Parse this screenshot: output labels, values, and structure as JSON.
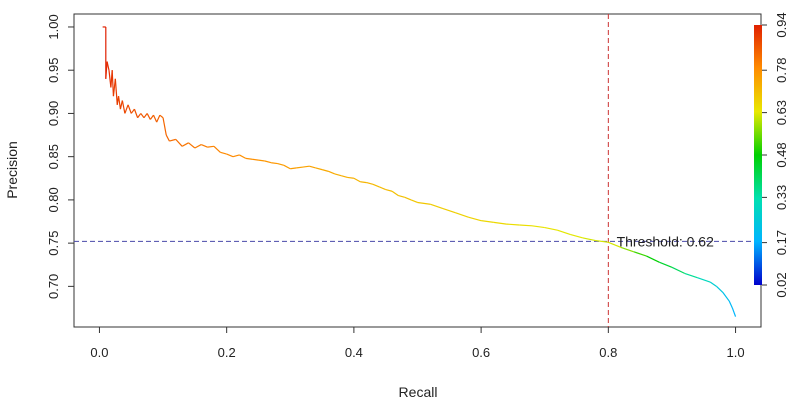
{
  "chart_data": {
    "type": "line",
    "xlabel": "Recall",
    "ylabel": "Precision",
    "xlim": [
      -0.04,
      1.04
    ],
    "ylim": [
      0.653,
      1.015
    ],
    "x_ticks": [
      0.0,
      0.2,
      0.4,
      0.6,
      0.8,
      1.0
    ],
    "x_tick_labels": [
      "0.0",
      "0.2",
      "0.4",
      "0.6",
      "0.8",
      "1.0"
    ],
    "y_ticks": [
      0.7,
      0.75,
      0.8,
      0.85,
      0.9,
      0.95,
      1.0
    ],
    "y_tick_labels": [
      "0.70",
      "0.75",
      "0.80",
      "0.85",
      "0.90",
      "0.95",
      "1.00"
    ],
    "grid": false,
    "series": [
      {
        "x": [
          0.005,
          0.01,
          0.01,
          0.012,
          0.015,
          0.018,
          0.02,
          0.022,
          0.025,
          0.028,
          0.03,
          0.033,
          0.036,
          0.04,
          0.045,
          0.05,
          0.055,
          0.06,
          0.065,
          0.07,
          0.075,
          0.08,
          0.085,
          0.09,
          0.095,
          0.1,
          0.105,
          0.11,
          0.12,
          0.13,
          0.14,
          0.15,
          0.16,
          0.17,
          0.18,
          0.19,
          0.2,
          0.21,
          0.22,
          0.23,
          0.24,
          0.25,
          0.26,
          0.27,
          0.28,
          0.29,
          0.3,
          0.31,
          0.32,
          0.33,
          0.34,
          0.35,
          0.36,
          0.37,
          0.38,
          0.39,
          0.4,
          0.41,
          0.42,
          0.43,
          0.44,
          0.45,
          0.46,
          0.47,
          0.48,
          0.49,
          0.5,
          0.52,
          0.54,
          0.56,
          0.58,
          0.6,
          0.62,
          0.64,
          0.66,
          0.68,
          0.7,
          0.72,
          0.74,
          0.76,
          0.78,
          0.8,
          0.82,
          0.84,
          0.86,
          0.88,
          0.9,
          0.92,
          0.94,
          0.96,
          0.97,
          0.98,
          0.99,
          0.995,
          1.0
        ],
        "y": [
          1.0,
          1.0,
          0.94,
          0.96,
          0.95,
          0.93,
          0.95,
          0.92,
          0.94,
          0.91,
          0.92,
          0.905,
          0.915,
          0.9,
          0.91,
          0.9,
          0.905,
          0.895,
          0.9,
          0.895,
          0.9,
          0.893,
          0.898,
          0.89,
          0.898,
          0.895,
          0.875,
          0.868,
          0.87,
          0.862,
          0.866,
          0.86,
          0.864,
          0.861,
          0.862,
          0.855,
          0.853,
          0.85,
          0.852,
          0.848,
          0.847,
          0.846,
          0.845,
          0.843,
          0.842,
          0.84,
          0.836,
          0.837,
          0.838,
          0.839,
          0.837,
          0.835,
          0.833,
          0.83,
          0.828,
          0.826,
          0.825,
          0.821,
          0.82,
          0.818,
          0.815,
          0.812,
          0.81,
          0.805,
          0.803,
          0.8,
          0.797,
          0.795,
          0.79,
          0.785,
          0.78,
          0.776,
          0.774,
          0.772,
          0.771,
          0.77,
          0.768,
          0.765,
          0.76,
          0.756,
          0.753,
          0.751,
          0.745,
          0.74,
          0.735,
          0.728,
          0.722,
          0.715,
          0.71,
          0.705,
          0.7,
          0.693,
          0.683,
          0.675,
          0.665
        ],
        "color_value": [
          0.94,
          0.94,
          0.93,
          0.92,
          0.92,
          0.91,
          0.91,
          0.9,
          0.9,
          0.9,
          0.89,
          0.89,
          0.89,
          0.88,
          0.88,
          0.87,
          0.87,
          0.87,
          0.86,
          0.86,
          0.86,
          0.85,
          0.85,
          0.85,
          0.84,
          0.84,
          0.84,
          0.83,
          0.83,
          0.82,
          0.82,
          0.81,
          0.81,
          0.8,
          0.8,
          0.79,
          0.79,
          0.79,
          0.78,
          0.78,
          0.78,
          0.77,
          0.77,
          0.77,
          0.76,
          0.76,
          0.76,
          0.75,
          0.75,
          0.75,
          0.74,
          0.74,
          0.74,
          0.73,
          0.73,
          0.73,
          0.72,
          0.72,
          0.72,
          0.71,
          0.71,
          0.71,
          0.7,
          0.7,
          0.7,
          0.69,
          0.69,
          0.68,
          0.68,
          0.67,
          0.67,
          0.66,
          0.66,
          0.65,
          0.65,
          0.64,
          0.64,
          0.63,
          0.63,
          0.62,
          0.62,
          0.62,
          0.57,
          0.52,
          0.48,
          0.44,
          0.4,
          0.35,
          0.3,
          0.26,
          0.24,
          0.21,
          0.19,
          0.18,
          0.17
        ]
      }
    ],
    "reference_lines": [
      {
        "orientation": "vertical",
        "value": 0.8,
        "color": "#cc3333",
        "style": "dashed"
      },
      {
        "orientation": "horizontal",
        "value": 0.752,
        "color": "#4a4aaa",
        "style": "dashed"
      }
    ],
    "annotations": [
      {
        "text": "Threshold: 0.62",
        "x": 0.813,
        "y": 0.752
      }
    ],
    "colorbar": {
      "position": "right",
      "range": [
        0.02,
        0.94
      ],
      "ticks": [
        0.02,
        0.17,
        0.33,
        0.48,
        0.63,
        0.78,
        0.94
      ],
      "tick_labels": [
        "0.02",
        "0.17",
        "0.33",
        "0.48",
        "0.63",
        "0.78",
        "0.94"
      ],
      "colors": [
        "#0000cc",
        "#00b4ff",
        "#00e0b0",
        "#00d000",
        "#e8e800",
        "#ff8c00",
        "#e02000"
      ]
    }
  }
}
